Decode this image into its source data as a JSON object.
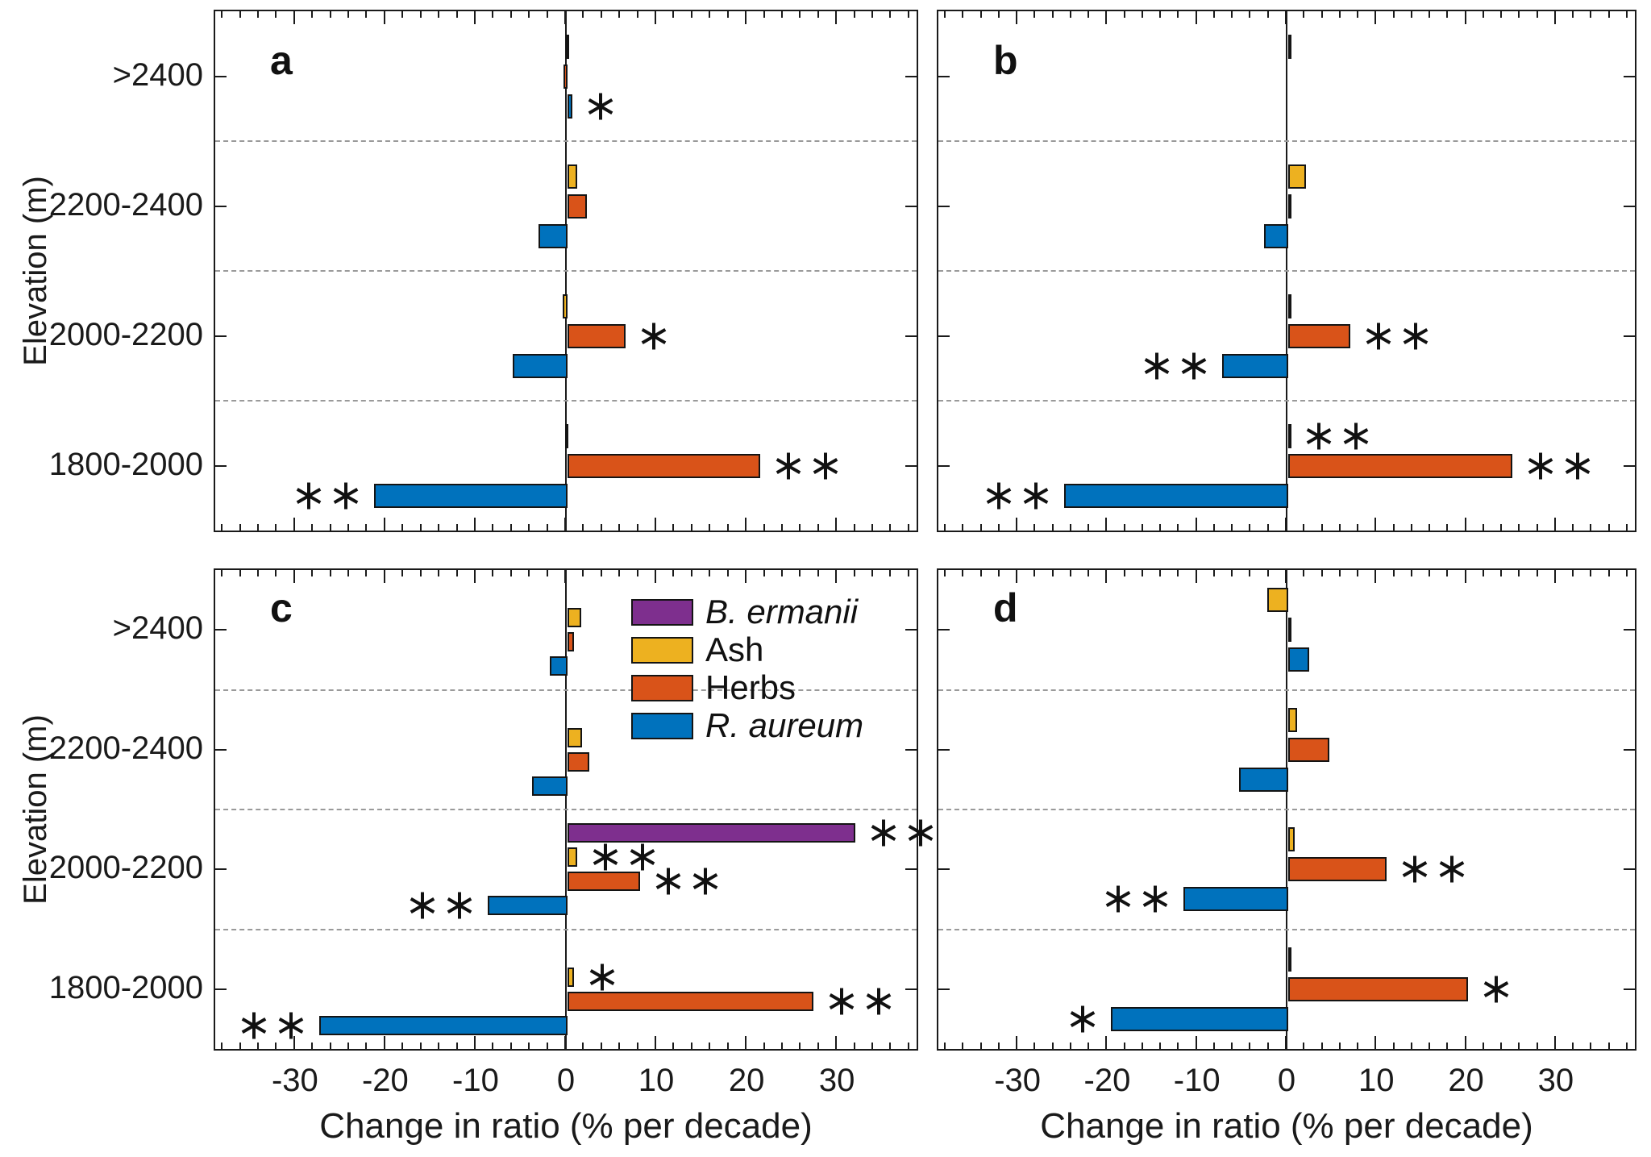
{
  "figure": {
    "xlabel": "Change in ratio (% per decade)",
    "ylabel": "Elevation (m)",
    "background": "#ffffff"
  },
  "legend": {
    "entries": [
      {
        "label": "B. ermanii",
        "color": "#7E2F8E",
        "italic": true
      },
      {
        "label": "Ash",
        "color": "#EDB120",
        "italic": false
      },
      {
        "label": "Herbs",
        "color": "#D95319",
        "italic": false
      },
      {
        "label": "R. aureum",
        "color": "#0072BD",
        "italic": true
      }
    ]
  },
  "chart_data": {
    "type": "bar",
    "orientation": "horizontal",
    "title": "",
    "xlabel": "Change in ratio (% per decade)",
    "ylabel": "Elevation (m)",
    "categories_top_to_bottom": [
      ">2400",
      "2200-2400",
      "2000-2200",
      "1800-2000"
    ],
    "xlim": [
      -39,
      39
    ],
    "xticks": [
      -30,
      -20,
      -10,
      0,
      10,
      20,
      30
    ],
    "minor_tick_step": 2,
    "grid": "dashed horizontal separators between elevation bands",
    "legend_position": "inside panel c, upper right of zero line",
    "series_colors": {
      "B. ermanii": "#7E2F8E",
      "Ash": "#EDB120",
      "Herbs": "#D95319",
      "R. aureum": "#0072BD"
    },
    "panels": [
      {
        "letter": "a",
        "slots": [
          "Ash",
          "Herbs",
          "R. aureum"
        ],
        "groups": [
          {
            "elevation": ">2400",
            "bars": [
              {
                "species": "Ash",
                "value": -0.2,
                "sig": ""
              },
              {
                "species": "Herbs",
                "value": -0.45,
                "sig": ""
              },
              {
                "species": "R. aureum",
                "value": 0.5,
                "sig": "*"
              }
            ]
          },
          {
            "elevation": "2200-2400",
            "bars": [
              {
                "species": "Ash",
                "value": 1.1,
                "sig": ""
              },
              {
                "species": "Herbs",
                "value": 2.1,
                "sig": ""
              },
              {
                "species": "R. aureum",
                "value": -3.2,
                "sig": ""
              }
            ]
          },
          {
            "elevation": "2000-2200",
            "bars": [
              {
                "species": "Ash",
                "value": -0.5,
                "sig": ""
              },
              {
                "species": "Herbs",
                "value": 6.4,
                "sig": "*"
              },
              {
                "species": "R. aureum",
                "value": -6.1,
                "sig": ""
              }
            ]
          },
          {
            "elevation": "1800-2000",
            "bars": [
              {
                "species": "Ash",
                "value": -0.3,
                "sig": ""
              },
              {
                "species": "Herbs",
                "value": 21.3,
                "sig": "**"
              },
              {
                "species": "R. aureum",
                "value": -21.4,
                "sig": "**"
              }
            ]
          }
        ]
      },
      {
        "letter": "b",
        "slots": [
          "Ash",
          "Herbs",
          "R. aureum"
        ],
        "groups": [
          {
            "elevation": ">2400",
            "bars": [
              {
                "species": "Ash",
                "value": 0.15,
                "sig": ""
              }
            ]
          },
          {
            "elevation": "2200-2400",
            "bars": [
              {
                "species": "Ash",
                "value": 2.0,
                "sig": ""
              },
              {
                "species": "Herbs",
                "value": 0.4,
                "sig": ""
              },
              {
                "species": "R. aureum",
                "value": -2.7,
                "sig": ""
              }
            ]
          },
          {
            "elevation": "2000-2200",
            "bars": [
              {
                "species": "Ash",
                "value": 0.4,
                "sig": ""
              },
              {
                "species": "Herbs",
                "value": 6.9,
                "sig": "**"
              },
              {
                "species": "R. aureum",
                "value": -7.4,
                "sig": "**"
              }
            ]
          },
          {
            "elevation": "1800-2000",
            "bars": [
              {
                "species": "Ash",
                "value": 0.2,
                "sig": "**"
              },
              {
                "species": "Herbs",
                "value": 25.0,
                "sig": "**"
              },
              {
                "species": "R. aureum",
                "value": -25.0,
                "sig": "**"
              }
            ]
          }
        ]
      },
      {
        "letter": "c",
        "slots": [
          "B. ermanii",
          "Ash",
          "Herbs",
          "R. aureum"
        ],
        "groups": [
          {
            "elevation": ">2400",
            "bars": [
              {
                "species": "Ash",
                "value": 1.5,
                "sig": ""
              },
              {
                "species": "Herbs",
                "value": 0.7,
                "sig": ""
              },
              {
                "species": "R. aureum",
                "value": -2.0,
                "sig": ""
              }
            ]
          },
          {
            "elevation": "2200-2400",
            "bars": [
              {
                "species": "Ash",
                "value": 1.6,
                "sig": ""
              },
              {
                "species": "Herbs",
                "value": 2.4,
                "sig": ""
              },
              {
                "species": "R. aureum",
                "value": -3.9,
                "sig": ""
              }
            ]
          },
          {
            "elevation": "2000-2200",
            "bars": [
              {
                "species": "B. ermanii",
                "value": 31.9,
                "sig": "**"
              },
              {
                "species": "Ash",
                "value": 1.1,
                "sig": "**"
              },
              {
                "species": "Herbs",
                "value": 8.0,
                "sig": "**"
              },
              {
                "species": "R. aureum",
                "value": -8.8,
                "sig": "**"
              }
            ]
          },
          {
            "elevation": "1800-2000",
            "bars": [
              {
                "species": "Ash",
                "value": 0.7,
                "sig": "*"
              },
              {
                "species": "Herbs",
                "value": 27.2,
                "sig": "**"
              },
              {
                "species": "R. aureum",
                "value": -27.5,
                "sig": "**"
              }
            ]
          }
        ]
      },
      {
        "letter": "d",
        "slots": [
          "Ash",
          "Herbs",
          "R. aureum"
        ],
        "groups": [
          {
            "elevation": ">2400",
            "bars": [
              {
                "species": "Ash",
                "value": -2.3,
                "sig": ""
              },
              {
                "species": "Herbs",
                "value": 0.2,
                "sig": ""
              },
              {
                "species": "R. aureum",
                "value": 2.3,
                "sig": ""
              }
            ]
          },
          {
            "elevation": "2200-2400",
            "bars": [
              {
                "species": "Ash",
                "value": 1.0,
                "sig": ""
              },
              {
                "species": "Herbs",
                "value": 4.6,
                "sig": ""
              },
              {
                "species": "R. aureum",
                "value": -5.5,
                "sig": ""
              }
            ]
          },
          {
            "elevation": "2000-2200",
            "bars": [
              {
                "species": "Ash",
                "value": 0.7,
                "sig": ""
              },
              {
                "species": "Herbs",
                "value": 11.0,
                "sig": "**"
              },
              {
                "species": "R. aureum",
                "value": -11.7,
                "sig": "**"
              }
            ]
          },
          {
            "elevation": "1800-2000",
            "bars": [
              {
                "species": "Ash",
                "value": 0.1,
                "sig": ""
              },
              {
                "species": "Herbs",
                "value": 20.0,
                "sig": "*"
              },
              {
                "species": "R. aureum",
                "value": -19.8,
                "sig": "*"
              }
            ]
          }
        ]
      }
    ]
  }
}
